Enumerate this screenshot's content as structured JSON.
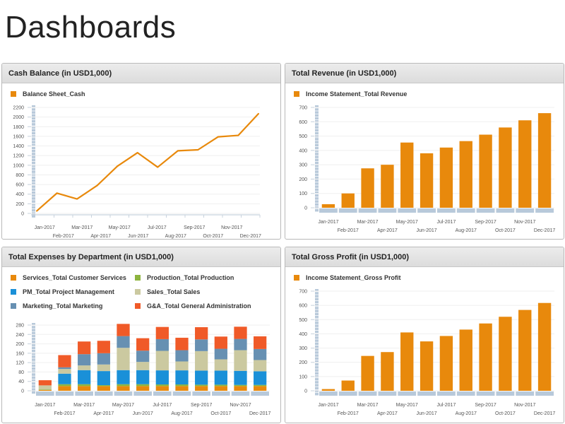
{
  "page": {
    "title": "Dashboards"
  },
  "colors": {
    "orange": "#e8890c",
    "axis_block": "#b8c9da",
    "grid": "#efefef"
  },
  "chart_data": [
    {
      "id": "cash",
      "type": "line",
      "title": "Cash Balance (in USD1,000)",
      "categories": [
        "Jan-2017",
        "Feb-2017",
        "Mar-2017",
        "Apr-2017",
        "May-2017",
        "Jun-2017",
        "Jul-2017",
        "Aug-2017",
        "Sep-2017",
        "Oct-2017",
        "Nov-2017",
        "Dec-2017"
      ],
      "series": [
        {
          "name": "Balance Sheet_Cash",
          "color": "#e8890c",
          "values": [
            50,
            420,
            300,
            580,
            980,
            1260,
            960,
            1300,
            1320,
            1590,
            1620,
            2070
          ]
        }
      ],
      "ylim": [
        0,
        2200
      ],
      "yticks": [
        0,
        200,
        400,
        600,
        800,
        1000,
        1200,
        1400,
        1600,
        1800,
        2000,
        2200
      ],
      "xlabel": "",
      "ylabel": "",
      "grid": true,
      "legend": "top-left"
    },
    {
      "id": "rev",
      "type": "bar",
      "title": "Total Revenue (in USD1,000)",
      "categories": [
        "Jan-2017",
        "Feb-2017",
        "Mar-2017",
        "Apr-2017",
        "May-2017",
        "Jun-2017",
        "Jul-2017",
        "Aug-2017",
        "Sep-2017",
        "Oct-2017",
        "Nov-2017",
        "Dec-2017"
      ],
      "series": [
        {
          "name": "Income Statement_Total Revenue",
          "color": "#e8890c",
          "values": [
            25,
            100,
            275,
            300,
            455,
            380,
            420,
            465,
            510,
            560,
            610,
            660
          ]
        }
      ],
      "ylim": [
        0,
        700
      ],
      "yticks": [
        0,
        100,
        200,
        300,
        400,
        500,
        600,
        700
      ],
      "xlabel": "",
      "ylabel": "",
      "grid": true,
      "legend": "top-left"
    },
    {
      "id": "exp",
      "type": "bar",
      "stacked": true,
      "title": "Total Expenses by Department (in USD1,000)",
      "categories": [
        "Jan-2017",
        "Feb-2017",
        "Mar-2017",
        "Apr-2017",
        "May-2017",
        "Jun-2017",
        "Jul-2017",
        "Aug-2017",
        "Sep-2017",
        "Oct-2017",
        "Nov-2017",
        "Dec-2017"
      ],
      "series": [
        {
          "name": "Services_Total Customer Services",
          "color": "#e8890c",
          "values": [
            3,
            20,
            20,
            20,
            20,
            20,
            20,
            20,
            20,
            20,
            20,
            20
          ]
        },
        {
          "name": "Production_Total Production",
          "color": "#8db43e",
          "values": [
            2,
            8,
            8,
            4,
            8,
            8,
            7,
            7,
            6,
            6,
            5,
            5
          ]
        },
        {
          "name": "PM_Total Project Management",
          "color": "#1a90d8",
          "values": [
            0,
            45,
            60,
            60,
            60,
            60,
            60,
            60,
            60,
            60,
            60,
            58
          ]
        },
        {
          "name": "Sales_Total Sales",
          "color": "#cbc9a0",
          "values": [
            18,
            20,
            20,
            28,
            95,
            35,
            83,
            38,
            83,
            48,
            88,
            48
          ]
        },
        {
          "name": "Marketing_Total Marketing",
          "color": "#6790b2",
          "values": [
            0,
            7,
            48,
            48,
            50,
            48,
            50,
            48,
            50,
            45,
            48,
            47
          ]
        },
        {
          "name": "G&A_Total General Administration",
          "color": "#f05a28",
          "values": [
            22,
            52,
            54,
            53,
            52,
            53,
            52,
            53,
            52,
            52,
            52,
            54
          ]
        }
      ],
      "ylim": [
        0,
        280
      ],
      "yticks": [
        0,
        40,
        80,
        120,
        160,
        200,
        240,
        280
      ],
      "xlabel": "",
      "ylabel": "",
      "grid": true,
      "legend": "top"
    },
    {
      "id": "gp",
      "type": "bar",
      "title": "Total Gross Profit (in USD1,000)",
      "categories": [
        "Jan-2017",
        "Feb-2017",
        "Mar-2017",
        "Apr-2017",
        "May-2017",
        "Jun-2017",
        "Jul-2017",
        "Aug-2017",
        "Sep-2017",
        "Oct-2017",
        "Nov-2017",
        "Dec-2017"
      ],
      "series": [
        {
          "name": "Income Statement_Gross Profit",
          "color": "#e8890c",
          "values": [
            12,
            72,
            245,
            272,
            410,
            347,
            385,
            430,
            473,
            520,
            568,
            617
          ]
        }
      ],
      "ylim": [
        0,
        700
      ],
      "yticks": [
        0,
        100,
        200,
        300,
        400,
        500,
        600,
        700
      ],
      "xlabel": "",
      "ylabel": "",
      "grid": true,
      "legend": "top-left"
    }
  ]
}
